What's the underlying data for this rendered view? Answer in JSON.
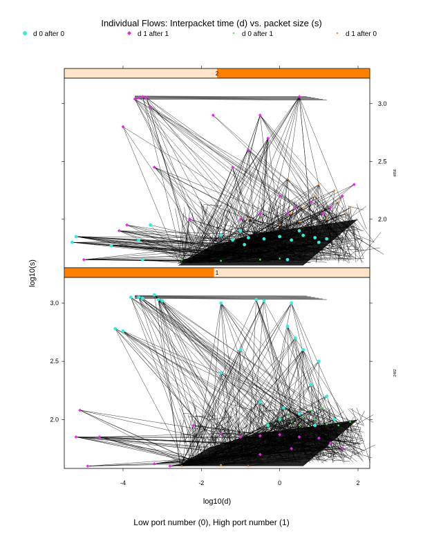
{
  "chart_data": {
    "type": "scatter",
    "title": "Individual Flows: Interpacket time (d) vs. packet size (s)",
    "subtitle": "Low port number (0), High port number (1)",
    "xlabel": "log10(d)",
    "ylabel": "log10(s)",
    "xlim": [
      -5.5,
      2.3
    ],
    "ylim": [
      1.58,
      3.22
    ],
    "x_ticks": [
      -4,
      -2,
      0,
      2
    ],
    "y_ticks": [
      2.0,
      2.5,
      3.0
    ],
    "legend": [
      {
        "label": "d 0 after 0",
        "color": "#33eedd",
        "marker": "circle"
      },
      {
        "label": "d 1 after 1",
        "color": "#ee22ee",
        "marker": "diamond"
      },
      {
        "label": "d 0 after 1",
        "color": "#33ee55",
        "marker": "dot"
      },
      {
        "label": "d 1 after 0",
        "color": "#ff8822",
        "marker": "dot"
      }
    ],
    "panels": [
      {
        "strip": "2",
        "strip_fill": 0.55,
        "side_label": "4856",
        "series": [
          {
            "name": "d 0 after 0",
            "points": [
              [
                -5.3,
                1.8
              ],
              [
                -5.2,
                1.85
              ],
              [
                -3.3,
                1.95
              ],
              [
                -4.3,
                1.77
              ],
              [
                -3.5,
                1.65
              ],
              [
                -1.5,
                1.86
              ],
              [
                -1.2,
                1.82
              ],
              [
                -0.8,
                1.84
              ],
              [
                -0.4,
                1.83
              ],
              [
                0.0,
                1.85
              ],
              [
                0.3,
                1.82
              ],
              [
                0.6,
                1.86
              ],
              [
                0.9,
                1.84
              ],
              [
                1.2,
                1.83
              ],
              [
                1.0,
                1.8
              ],
              [
                -0.9,
                1.78
              ],
              [
                -1.0,
                1.9
              ],
              [
                0.5,
                1.9
              ],
              [
                0.2,
                1.65
              ],
              [
                -3.6,
                1.82
              ]
            ]
          },
          {
            "name": "d 1 after 1",
            "points": [
              [
                -3.6,
                3.05
              ],
              [
                -3.5,
                3.06
              ],
              [
                -3.7,
                3.04
              ],
              [
                -3.4,
                3.05
              ],
              [
                -4.0,
                2.8
              ],
              [
                -3.3,
                2.97
              ],
              [
                -3.2,
                2.45
              ],
              [
                -1.7,
                2.9
              ],
              [
                -1.2,
                2.45
              ],
              [
                -0.5,
                2.9
              ],
              [
                0.5,
                3.06
              ],
              [
                -0.3,
                2.7
              ],
              [
                -0.8,
                2.6
              ],
              [
                0.0,
                2.2
              ],
              [
                0.4,
                2.1
              ],
              [
                0.8,
                2.15
              ],
              [
                1.1,
                2.05
              ],
              [
                1.3,
                2.1
              ],
              [
                0.2,
                2.05
              ],
              [
                -0.5,
                2.05
              ],
              [
                -1.0,
                2.0
              ],
              [
                -3.9,
                1.95
              ],
              [
                -5.0,
                1.65
              ],
              [
                -4.1,
                1.9
              ],
              [
                -2.3,
                2.0
              ],
              [
                1.6,
                2.2
              ],
              [
                1.9,
                2.3
              ]
            ]
          },
          {
            "name": "d 0 after 1",
            "points": [
              [
                -2.5,
                1.65
              ],
              [
                -1.5,
                1.64
              ],
              [
                -0.5,
                1.65
              ],
              [
                0.0,
                1.66
              ]
            ]
          },
          {
            "name": "d 1 after 0",
            "points": [
              [
                0.3,
                2.05
              ],
              [
                0.6,
                2.1
              ],
              [
                0.9,
                2.2
              ],
              [
                1.2,
                2.0
              ],
              [
                1.5,
                2.15
              ],
              [
                1.8,
                2.1
              ],
              [
                0.0,
                1.95
              ],
              [
                0.5,
                1.98
              ],
              [
                1.0,
                2.3
              ],
              [
                1.4,
                2.25
              ],
              [
                0.2,
                2.35
              ],
              [
                1.7,
                2.05
              ],
              [
                -0.8,
                2.0
              ]
            ]
          }
        ]
      },
      {
        "strip": "1",
        "strip_fill": 0.49,
        "side_label": "2482",
        "series": [
          {
            "name": "d 0 after 0",
            "points": [
              [
                -3.8,
                3.05
              ],
              [
                -3.6,
                3.05
              ],
              [
                -3.2,
                3.07
              ],
              [
                -3.1,
                3.03
              ],
              [
                -3.5,
                3.04
              ],
              [
                -4.2,
                2.78
              ],
              [
                -4.0,
                2.76
              ],
              [
                -0.6,
                3.03
              ],
              [
                -0.4,
                3.02
              ],
              [
                0.3,
                3.0
              ],
              [
                0.2,
                2.8
              ],
              [
                0.4,
                2.7
              ],
              [
                0.6,
                2.6
              ],
              [
                1.0,
                2.5
              ],
              [
                0.8,
                2.3
              ],
              [
                1.2,
                2.2
              ],
              [
                0.1,
                2.1
              ],
              [
                0.5,
                2.05
              ],
              [
                -0.5,
                2.15
              ],
              [
                -1.5,
                2.4
              ],
              [
                -0.3,
                1.95
              ],
              [
                0.0,
                2.0
              ],
              [
                0.9,
                1.95
              ],
              [
                1.4,
                2.0
              ],
              [
                -1.0,
                2.6
              ],
              [
                -1.5,
                3.0
              ],
              [
                -3.0,
                3.02
              ]
            ]
          },
          {
            "name": "d 1 after 1",
            "points": [
              [
                -5.1,
                2.08
              ],
              [
                -5.2,
                1.85
              ],
              [
                -4.6,
                1.85
              ],
              [
                -4.9,
                1.6
              ],
              [
                -2.2,
                1.95
              ],
              [
                -1.5,
                1.88
              ],
              [
                -1.0,
                1.85
              ],
              [
                -0.5,
                1.86
              ],
              [
                0.0,
                1.87
              ],
              [
                0.5,
                1.85
              ],
              [
                1.0,
                1.84
              ],
              [
                1.3,
                1.8
              ],
              [
                -2.8,
                1.6
              ],
              [
                -0.5,
                1.7
              ],
              [
                0.3,
                1.75
              ],
              [
                1.6,
                1.75
              ],
              [
                -3.2,
                1.62
              ]
            ]
          },
          {
            "name": "d 0 after 1",
            "points": [
              [
                0.0,
                2.0
              ],
              [
                0.3,
                1.98
              ],
              [
                0.6,
                2.02
              ],
              [
                0.9,
                2.0
              ],
              [
                1.2,
                1.96
              ],
              [
                1.5,
                1.95
              ],
              [
                1.8,
                1.98
              ],
              [
                0.2,
                2.05
              ],
              [
                0.8,
                2.08
              ],
              [
                -0.3,
                1.97
              ],
              [
                1.1,
                2.1
              ],
              [
                0.5,
                1.95
              ]
            ]
          },
          {
            "name": "d 1 after 0",
            "points": [
              [
                -2.5,
                1.6
              ],
              [
                -1.5,
                1.61
              ],
              [
                -0.8,
                1.6
              ]
            ]
          }
        ]
      }
    ]
  }
}
